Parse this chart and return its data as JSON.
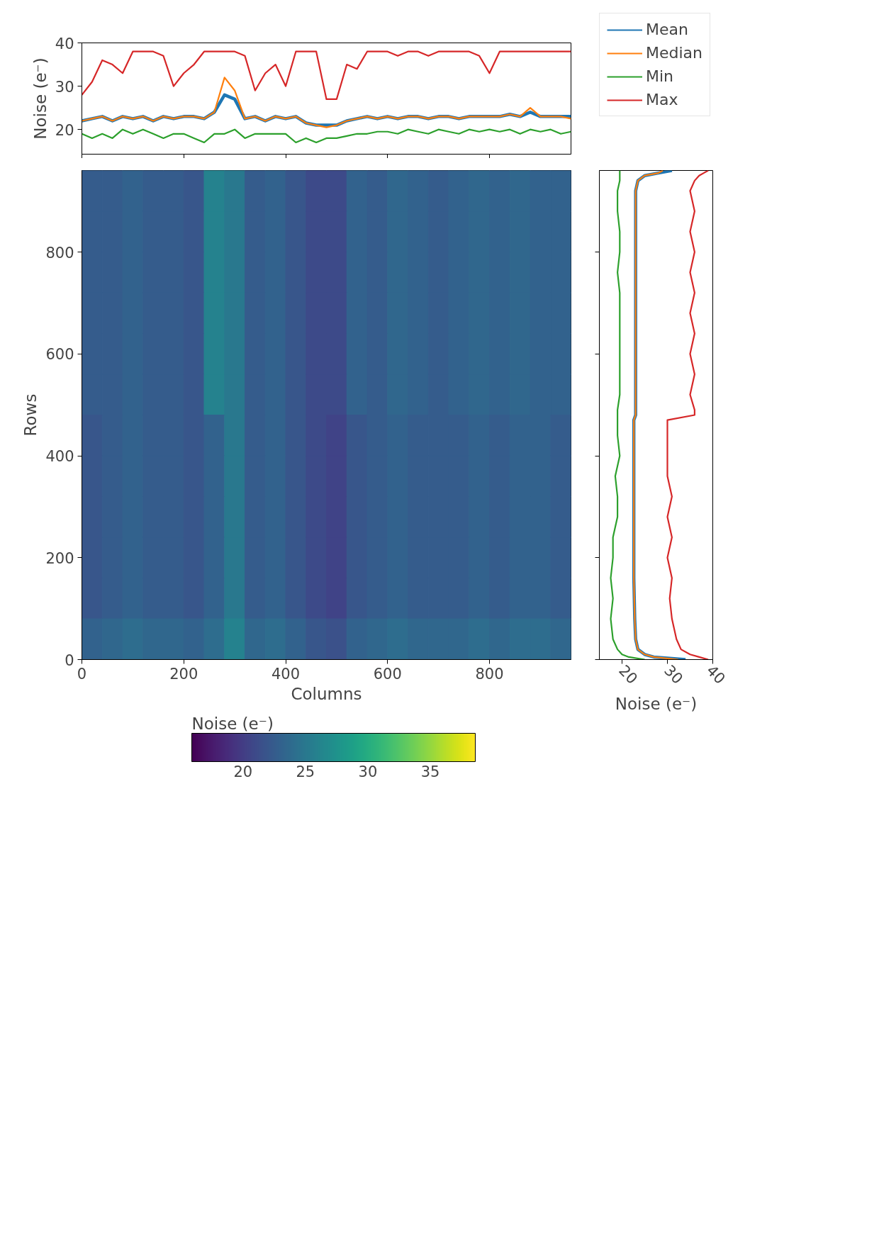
{
  "chart_data": [
    {
      "type": "line",
      "ylabel": "Noise (e⁻)",
      "xlim": [
        0,
        960
      ],
      "xticks": [
        0,
        200,
        400,
        600,
        800
      ],
      "ylim": [
        14.3,
        40
      ],
      "yticks": [
        20,
        30,
        40
      ],
      "tick_labels": "y",
      "legend": "right",
      "grid": false,
      "x": [
        0,
        20,
        40,
        60,
        80,
        100,
        120,
        140,
        160,
        180,
        200,
        220,
        240,
        260,
        280,
        300,
        320,
        340,
        360,
        380,
        400,
        420,
        440,
        460,
        480,
        500,
        520,
        540,
        560,
        580,
        600,
        620,
        640,
        660,
        680,
        700,
        720,
        740,
        760,
        780,
        800,
        820,
        840,
        860,
        880,
        900,
        920,
        940,
        960
      ],
      "series": [
        {
          "name": "Mean",
          "color": "#1f77b4",
          "values": [
            22,
            22.5,
            23,
            22,
            23,
            22.5,
            23,
            22,
            23,
            22.5,
            23,
            23,
            22.5,
            24,
            28,
            27,
            22.5,
            23,
            22,
            23,
            22.5,
            23,
            21.5,
            21,
            21,
            21,
            22,
            22.5,
            23,
            22.5,
            23,
            22.5,
            23,
            23,
            22.5,
            23,
            23,
            22.5,
            23,
            23,
            23,
            23,
            23.5,
            23,
            24,
            23,
            23,
            23,
            23
          ]
        },
        {
          "name": "Median",
          "color": "#ff7f0e",
          "values": [
            22,
            22.5,
            23,
            22,
            23,
            22.5,
            23,
            22,
            23,
            22.5,
            23,
            23,
            22.5,
            24,
            32,
            29,
            22.5,
            23,
            22,
            23,
            22.5,
            23,
            21.5,
            21,
            20.5,
            21,
            22,
            22.5,
            23,
            22.5,
            23,
            22.5,
            23,
            23,
            22.5,
            23,
            23,
            22.5,
            23,
            23,
            23,
            23,
            23.5,
            23,
            25,
            23,
            23,
            23,
            22.5
          ]
        },
        {
          "name": "Min",
          "color": "#2ca02c",
          "values": [
            19,
            18,
            19,
            18,
            20,
            19,
            20,
            19,
            18,
            19,
            19,
            18,
            17,
            19,
            19,
            20,
            18,
            19,
            19,
            19,
            19,
            17,
            18,
            17,
            18,
            18,
            18.5,
            19,
            19,
            19.5,
            19.5,
            19,
            20,
            19.5,
            19,
            20,
            19.5,
            19,
            20,
            19.5,
            20,
            19.5,
            20,
            19,
            20,
            19.5,
            20,
            19,
            19.5
          ]
        },
        {
          "name": "Max",
          "color": "#d62728",
          "values": [
            28,
            31,
            36,
            35,
            33,
            38,
            38,
            38,
            37,
            30,
            33,
            35,
            38,
            38,
            38,
            38,
            37,
            29,
            33,
            35,
            30,
            38,
            38,
            38,
            27,
            27,
            35,
            34,
            38,
            38,
            38,
            37,
            38,
            38,
            37,
            38,
            38,
            38,
            38,
            37,
            33,
            38,
            38,
            38,
            38,
            38,
            38,
            38,
            38
          ]
        }
      ]
    },
    {
      "type": "heatmap",
      "xlabel": "Columns",
      "ylabel": "Rows",
      "clabel": "Noise (e⁻)",
      "xlim": [
        0,
        960
      ],
      "xticks": [
        0,
        200,
        400,
        600,
        800
      ],
      "ylim": [
        0,
        960
      ],
      "yticks": [
        0,
        200,
        400,
        600,
        800
      ],
      "clim": [
        15.9,
        38.6
      ],
      "cticks": [
        20,
        25,
        30,
        35
      ],
      "x": [
        20,
        60,
        100,
        140,
        180,
        220,
        260,
        300,
        340,
        380,
        420,
        460,
        500,
        540,
        580,
        620,
        660,
        700,
        740,
        780,
        820,
        860,
        900,
        940
      ],
      "y": [
        920,
        840,
        760,
        680,
        600,
        520,
        440,
        360,
        280,
        200,
        120,
        40
      ],
      "cells": [
        [
          22.5,
          22.5,
          23,
          22.5,
          22.5,
          22,
          26,
          25,
          22.5,
          23,
          22,
          21,
          21,
          23,
          22.5,
          23.5,
          23,
          22.5,
          23,
          23.5,
          23,
          23.5,
          23,
          23
        ],
        [
          22.5,
          22.5,
          23,
          22.5,
          22.5,
          22,
          26,
          25,
          22.5,
          23,
          22,
          21,
          21,
          23,
          22.5,
          23.5,
          23,
          22.5,
          23,
          23.5,
          23,
          23.5,
          23,
          23
        ],
        [
          22.5,
          22.5,
          23,
          22.5,
          22.5,
          22,
          26,
          25,
          22.5,
          23,
          22,
          21,
          21,
          23,
          22.5,
          23.5,
          23,
          22.5,
          23,
          23.5,
          23,
          23.5,
          23,
          23
        ],
        [
          22.5,
          22.5,
          23,
          22.5,
          22.5,
          22,
          26,
          25,
          22.5,
          23,
          22,
          21,
          21,
          23,
          22.5,
          23.5,
          23,
          22.5,
          23,
          23.5,
          23,
          23.5,
          23,
          23
        ],
        [
          22.5,
          22.5,
          23,
          22.5,
          22.5,
          22,
          26,
          25,
          22.5,
          23,
          22,
          21,
          21,
          23,
          22.5,
          23.5,
          23,
          22.5,
          23,
          23.5,
          23,
          23.5,
          23,
          23
        ],
        [
          22.5,
          22.5,
          23,
          22.5,
          22.5,
          22,
          26,
          25,
          22.5,
          23,
          22,
          21,
          21,
          23,
          22.5,
          23.5,
          23,
          22.5,
          23,
          23.5,
          23,
          23.5,
          23,
          23
        ],
        [
          22,
          22.5,
          23,
          22.5,
          22.5,
          22,
          23,
          25,
          22.5,
          23,
          22,
          21,
          20.5,
          22,
          22.5,
          23,
          22.5,
          22.5,
          22.5,
          23,
          22.5,
          23,
          23,
          22.5
        ],
        [
          22,
          22.5,
          23,
          22.5,
          22.5,
          22,
          23,
          25,
          22.5,
          23,
          22,
          21,
          20.5,
          22,
          22.5,
          23,
          22.5,
          22.5,
          22.5,
          23,
          22.5,
          23,
          23,
          22.5
        ],
        [
          22,
          22.5,
          23,
          22.5,
          22.5,
          22,
          23,
          25,
          22.5,
          23,
          22,
          21,
          20.5,
          22,
          22.5,
          23,
          22.5,
          22.5,
          22.5,
          23,
          22.5,
          23,
          23,
          22.5
        ],
        [
          22,
          22.5,
          23,
          22.5,
          22.5,
          22,
          23,
          25,
          22.5,
          23,
          22,
          21,
          20.5,
          22,
          22.5,
          23,
          22.5,
          22.5,
          22.5,
          23,
          22.5,
          23,
          23,
          22.5
        ],
        [
          22,
          22.5,
          23,
          22.5,
          22.5,
          22,
          23,
          25,
          22.5,
          23,
          22,
          21,
          20.5,
          22,
          22.5,
          23,
          22.5,
          22.5,
          22.5,
          23,
          22.5,
          23,
          23,
          22.5
        ],
        [
          23,
          23.5,
          24,
          23.5,
          23.5,
          23,
          24,
          26,
          23.5,
          24,
          23,
          22,
          21.5,
          23,
          23.5,
          24,
          23.5,
          23.5,
          23.5,
          24,
          23.5,
          24,
          24,
          23.5
        ]
      ]
    },
    {
      "type": "line",
      "xlabel": "Noise (e⁻)",
      "xlim": [
        15,
        40
      ],
      "xticks": [
        20,
        30,
        40
      ],
      "ylim": [
        0,
        960
      ],
      "yticks": [
        0,
        200,
        400,
        600,
        800
      ],
      "tick_labels": "x",
      "grid": false,
      "series": [
        {
          "color": "#1f77b4",
          "x": [
            34,
            27,
            25,
            23.5,
            23,
            22.8,
            22.7,
            22.6,
            22.6,
            22.6,
            22.6,
            22.6,
            22.6,
            22.6,
            22.6,
            22.6,
            23,
            23,
            23,
            23,
            23,
            23,
            23,
            23,
            23,
            23,
            23,
            23,
            23,
            23.5,
            25,
            28,
            31
          ],
          "values": [
            0,
            5,
            10,
            20,
            40,
            80,
            120,
            160,
            200,
            240,
            280,
            320,
            360,
            400,
            440,
            470,
            480,
            490,
            520,
            560,
            600,
            640,
            680,
            720,
            760,
            800,
            840,
            880,
            920,
            940,
            950,
            955,
            960
          ]
        },
        {
          "color": "#ff7f0e",
          "x": [
            32.4,
            27,
            25,
            23.5,
            23,
            22.8,
            22.7,
            22.6,
            22.6,
            22.6,
            22.6,
            22.6,
            22.6,
            22.6,
            22.6,
            22.6,
            23,
            23,
            23,
            23,
            23,
            23,
            23,
            23,
            23,
            23,
            23,
            23,
            23,
            23.5,
            25,
            28,
            29
          ],
          "values": [
            0,
            5,
            10,
            20,
            40,
            80,
            120,
            160,
            200,
            240,
            280,
            320,
            360,
            400,
            440,
            470,
            480,
            490,
            520,
            560,
            600,
            640,
            680,
            720,
            760,
            800,
            840,
            880,
            920,
            940,
            950,
            955,
            960
          ]
        },
        {
          "color": "#2ca02c",
          "x": [
            25,
            21.5,
            20,
            19,
            18,
            17.5,
            18,
            17.5,
            18,
            18,
            19,
            19,
            18.5,
            19.5,
            19,
            19,
            19,
            19,
            19.5,
            19.5,
            19.5,
            19.5,
            19.5,
            19.5,
            19,
            19.5,
            19.5,
            19,
            19,
            19.5,
            19.5,
            19.5,
            19.5
          ],
          "values": [
            0,
            5,
            10,
            20,
            40,
            80,
            120,
            160,
            200,
            240,
            280,
            320,
            360,
            400,
            440,
            470,
            480,
            490,
            520,
            560,
            600,
            640,
            680,
            720,
            760,
            800,
            840,
            880,
            920,
            940,
            950,
            955,
            960
          ]
        },
        {
          "color": "#d62728",
          "x": [
            39,
            37,
            35,
            33,
            32,
            31,
            30.5,
            31,
            30,
            31,
            30,
            31,
            30,
            30,
            30,
            30,
            36,
            36,
            35,
            36,
            35,
            36,
            35,
            36,
            35,
            36,
            35,
            36,
            35,
            36,
            37,
            38,
            39
          ],
          "values": [
            0,
            5,
            10,
            20,
            40,
            80,
            120,
            160,
            200,
            240,
            280,
            320,
            360,
            400,
            440,
            470,
            480,
            490,
            520,
            560,
            600,
            640,
            680,
            720,
            760,
            800,
            840,
            880,
            920,
            940,
            950,
            955,
            960
          ]
        }
      ]
    }
  ]
}
